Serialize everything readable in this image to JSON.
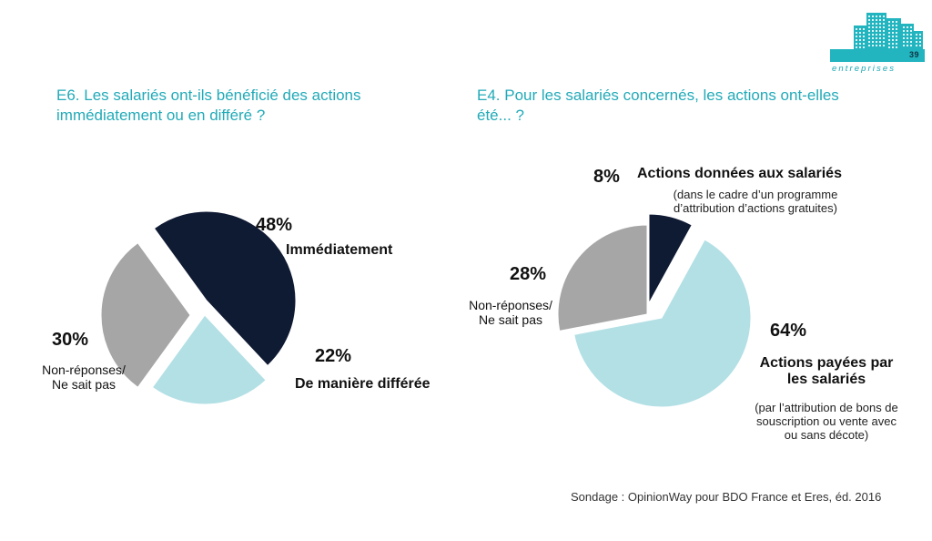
{
  "badge": {
    "count": "39",
    "label": "entreprises",
    "color": "#22b5c0"
  },
  "charts": [
    {
      "question": "E6. Les salariés ont-ils bénéficié des actions immédiatement ou en différé ?",
      "slices": [
        {
          "pct_label": "48%",
          "label": "Immédiatement",
          "color": "#0f1a33"
        },
        {
          "pct_label": "22%",
          "label": "De manière différée",
          "color": "#b3e0e5"
        },
        {
          "pct_label": "30%",
          "label_lines": [
            "Non-réponses/",
            "Ne sait pas"
          ],
          "color": "#a6a6a6"
        }
      ]
    },
    {
      "question": "E4. Pour les salariés concernés, les actions ont-elles été... ?",
      "slices": [
        {
          "pct_label": "8%",
          "label": "Actions données aux salariés",
          "note_lines": [
            "(dans le cadre d’un programme",
            "d’attribution d’actions gratuites)"
          ],
          "color": "#0f1a33"
        },
        {
          "pct_label": "64%",
          "label_lines": [
            "Actions payées par",
            "les salariés"
          ],
          "note_lines": [
            "(par l’attribution de bons de",
            "souscription ou vente avec",
            "ou sans décote)"
          ],
          "color": "#b3e0e5"
        },
        {
          "pct_label": "28%",
          "label_lines": [
            "Non-réponses/",
            "Ne sait pas"
          ],
          "color": "#a6a6a6"
        }
      ]
    }
  ],
  "chart_data": [
    {
      "type": "pie",
      "title": "E6. Les salariés ont-ils bénéficié des actions immédiatement ou en différé ?",
      "categories": [
        "Immédiatement",
        "De manière différée",
        "Non-réponses/ Ne sait pas"
      ],
      "values": [
        48,
        22,
        30
      ],
      "colors": [
        "#0f1a33",
        "#b3e0e5",
        "#a6a6a6"
      ]
    },
    {
      "type": "pie",
      "title": "E4. Pour les salariés concernés, les actions ont-elles été... ?",
      "categories": [
        "Actions données aux salariés",
        "Actions payées par les salariés",
        "Non-réponses/ Ne sait pas"
      ],
      "values": [
        8,
        64,
        28
      ],
      "colors": [
        "#0f1a33",
        "#b3e0e5",
        "#a6a6a6"
      ]
    }
  ],
  "source": "Sondage : OpinionWay pour BDO France et Eres, éd. 2016"
}
